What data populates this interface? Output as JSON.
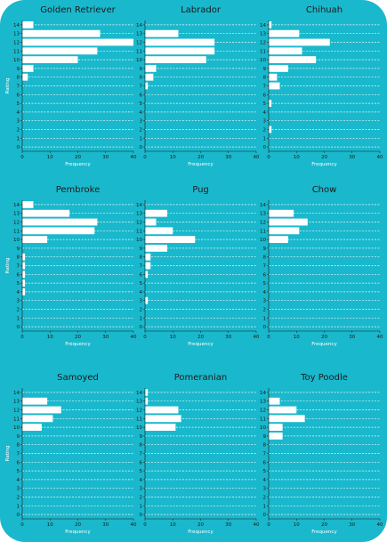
{
  "chart_data": [
    {
      "type": "bar",
      "orientation": "horizontal",
      "title": "Golden Retriever",
      "xlabel": "Frequency",
      "ylabel": "Rating",
      "categories": [
        0,
        1,
        2,
        3,
        4,
        5,
        6,
        7,
        8,
        9,
        10,
        11,
        12,
        13,
        14
      ],
      "values": [
        0,
        0,
        0,
        0,
        0,
        0,
        0,
        0,
        2,
        4,
        20,
        27,
        40,
        28,
        4
      ],
      "xlim": [
        0,
        40
      ],
      "xticks": [
        0,
        10,
        20,
        30,
        40
      ],
      "grid": "dashed-y"
    },
    {
      "type": "bar",
      "orientation": "horizontal",
      "title": "Labrador",
      "xlabel": "Frequency",
      "ylabel": "",
      "categories": [
        0,
        1,
        2,
        3,
        4,
        5,
        6,
        7,
        8,
        9,
        10,
        11,
        12,
        13,
        14
      ],
      "values": [
        0,
        0,
        0,
        0,
        0,
        0,
        0,
        1,
        3,
        4,
        22,
        25,
        25,
        12,
        0
      ],
      "xlim": [
        0,
        40
      ],
      "xticks": [
        0,
        10,
        20,
        30,
        40
      ],
      "grid": "dashed-y"
    },
    {
      "type": "bar",
      "orientation": "horizontal",
      "title": "Chihuah",
      "xlabel": "Frequency",
      "ylabel": "",
      "categories": [
        0,
        1,
        2,
        3,
        4,
        5,
        6,
        7,
        8,
        9,
        10,
        11,
        12,
        13,
        14
      ],
      "values": [
        0,
        0,
        1,
        0,
        0,
        1,
        0,
        4,
        3,
        7,
        17,
        12,
        22,
        11,
        1
      ],
      "xlim": [
        0,
        40
      ],
      "xticks": [
        0,
        10,
        20,
        30,
        40
      ],
      "grid": "dashed-y"
    },
    {
      "type": "bar",
      "orientation": "horizontal",
      "title": "Pembroke",
      "xlabel": "Frequency",
      "ylabel": "Rating",
      "categories": [
        0,
        1,
        2,
        3,
        4,
        5,
        6,
        7,
        8,
        9,
        10,
        11,
        12,
        13,
        14
      ],
      "values": [
        0,
        0,
        0,
        0,
        1,
        1,
        1,
        1,
        1,
        0,
        9,
        26,
        27,
        17,
        4
      ],
      "xlim": [
        0,
        40
      ],
      "xticks": [
        0,
        10,
        20,
        30,
        40
      ],
      "grid": "dashed-y"
    },
    {
      "type": "bar",
      "orientation": "horizontal",
      "title": "Pug",
      "xlabel": "Frequency",
      "ylabel": "",
      "categories": [
        0,
        1,
        2,
        3,
        4,
        5,
        6,
        7,
        8,
        9,
        10,
        11,
        12,
        13,
        14
      ],
      "values": [
        0,
        0,
        0,
        1,
        0,
        0,
        1,
        2,
        2,
        8,
        18,
        10,
        4,
        8,
        0
      ],
      "xlim": [
        0,
        40
      ],
      "xticks": [
        0,
        10,
        20,
        30,
        40
      ],
      "grid": "dashed-y"
    },
    {
      "type": "bar",
      "orientation": "horizontal",
      "title": "Chow",
      "xlabel": "Frequency",
      "ylabel": "",
      "categories": [
        0,
        1,
        2,
        3,
        4,
        5,
        6,
        7,
        8,
        9,
        10,
        11,
        12,
        13,
        14
      ],
      "values": [
        0,
        0,
        0,
        0,
        0,
        0,
        0,
        0,
        0,
        0,
        7,
        11,
        14,
        9,
        0
      ],
      "xlim": [
        0,
        40
      ],
      "xticks": [
        0,
        10,
        20,
        30,
        40
      ],
      "grid": "dashed-y"
    },
    {
      "type": "bar",
      "orientation": "horizontal",
      "title": "Samoyed",
      "xlabel": "Frequency",
      "ylabel": "Rating",
      "categories": [
        0,
        1,
        2,
        3,
        4,
        5,
        6,
        7,
        8,
        9,
        10,
        11,
        12,
        13,
        14
      ],
      "values": [
        0,
        0,
        0,
        0,
        0,
        0,
        0,
        0,
        0,
        0,
        7,
        11,
        14,
        9,
        0
      ],
      "xlim": [
        0,
        40
      ],
      "xticks": [
        0,
        10,
        20,
        30,
        40
      ],
      "grid": "dashed-y"
    },
    {
      "type": "bar",
      "orientation": "horizontal",
      "title": "Pomeranian",
      "xlabel": "Frequency",
      "ylabel": "",
      "categories": [
        0,
        1,
        2,
        3,
        4,
        5,
        6,
        7,
        8,
        9,
        10,
        11,
        12,
        13,
        14
      ],
      "values": [
        0,
        0,
        0,
        0,
        0,
        0,
        0,
        0,
        0,
        0,
        11,
        13,
        12,
        1,
        1
      ],
      "xlim": [
        0,
        40
      ],
      "xticks": [
        0,
        10,
        20,
        30,
        40
      ],
      "grid": "dashed-y"
    },
    {
      "type": "bar",
      "orientation": "horizontal",
      "title": "Toy Poodle",
      "xlabel": "Frequency",
      "ylabel": "",
      "categories": [
        0,
        1,
        2,
        3,
        4,
        5,
        6,
        7,
        8,
        9,
        10,
        11,
        12,
        13,
        14
      ],
      "values": [
        0,
        0,
        0,
        0,
        0,
        0,
        0,
        0,
        0,
        5,
        5,
        13,
        10,
        4,
        0
      ],
      "xlim": [
        0,
        40
      ],
      "xticks": [
        0,
        10,
        20,
        30,
        40
      ],
      "grid": "dashed-y"
    }
  ],
  "colors": {
    "background": "#1ab8cc",
    "bar": "#ffffff",
    "grid": "#ffffff",
    "axis": "#1a1a1a",
    "text": "#1a1a1a",
    "axis_label": "#ffffff"
  }
}
